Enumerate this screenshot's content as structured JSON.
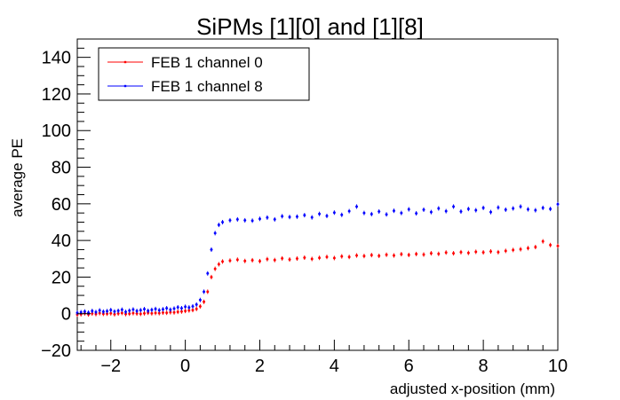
{
  "chart_data": {
    "type": "scatter",
    "title": "SiPMs [1][0] and [1][8]",
    "xlabel": "adjusted x-position (mm)",
    "ylabel": "average PE",
    "xlim": [
      -2.9,
      10
    ],
    "ylim": [
      -20,
      150
    ],
    "xticks": [
      "−2",
      "0",
      "2",
      "4",
      "6",
      "8",
      "10"
    ],
    "xtick_values": [
      -2,
      0,
      2,
      4,
      6,
      8,
      10
    ],
    "yticks": [
      "−20",
      "0",
      "20",
      "40",
      "60",
      "80",
      "100",
      "120",
      "140"
    ],
    "ytick_values": [
      -20,
      0,
      20,
      40,
      60,
      80,
      100,
      120,
      140
    ],
    "grid": false,
    "legend_position": "top-left",
    "series": [
      {
        "name": "FEB 1 channel 0",
        "color": "#ff0000",
        "x": [
          -2.9,
          -2.8,
          -2.7,
          -2.6,
          -2.5,
          -2.4,
          -2.3,
          -2.2,
          -2.1,
          -2.0,
          -1.9,
          -1.8,
          -1.7,
          -1.6,
          -1.5,
          -1.4,
          -1.3,
          -1.2,
          -1.1,
          -1.0,
          -0.9,
          -0.8,
          -0.7,
          -0.6,
          -0.5,
          -0.4,
          -0.3,
          -0.2,
          -0.1,
          0.0,
          0.1,
          0.2,
          0.3,
          0.4,
          0.5,
          0.6,
          0.7,
          0.8,
          0.9,
          1.0,
          1.2,
          1.4,
          1.6,
          1.8,
          2.0,
          2.2,
          2.4,
          2.6,
          2.8,
          3.0,
          3.2,
          3.4,
          3.6,
          3.8,
          4.0,
          4.2,
          4.4,
          4.6,
          4.8,
          5.0,
          5.2,
          5.4,
          5.6,
          5.8,
          6.0,
          6.2,
          6.4,
          6.6,
          6.8,
          7.0,
          7.2,
          7.4,
          7.6,
          7.8,
          8.0,
          8.2,
          8.4,
          8.6,
          8.8,
          9.0,
          9.2,
          9.4,
          9.6,
          9.8,
          10.0
        ],
        "y": [
          -0.5,
          -0.3,
          0.2,
          -0.4,
          0.1,
          -0.2,
          0.3,
          -0.1,
          0.0,
          0.2,
          -0.3,
          0.1,
          0.4,
          -0.2,
          0.0,
          0.3,
          0.1,
          -0.1,
          0.2,
          0.5,
          0.2,
          0.4,
          0.3,
          0.6,
          0.5,
          0.8,
          0.7,
          1.0,
          1.2,
          1.5,
          1.8,
          2.0,
          2.6,
          4.0,
          6.5,
          12.0,
          20.0,
          24.5,
          27.0,
          28.5,
          29.0,
          29.5,
          28.8,
          29.2,
          28.7,
          29.8,
          29.3,
          30.2,
          29.6,
          30.1,
          30.6,
          29.9,
          30.5,
          31.0,
          30.4,
          31.3,
          31.0,
          31.8,
          31.5,
          32.0,
          31.6,
          32.2,
          31.8,
          32.5,
          32.1,
          32.6,
          32.3,
          33.0,
          32.7,
          33.4,
          33.0,
          33.6,
          33.2,
          33.8,
          33.5,
          34.0,
          33.6,
          34.3,
          34.8,
          35.2,
          35.8,
          36.4,
          39.5,
          37.5,
          37.0
        ]
      },
      {
        "name": "FEB 1 channel 8",
        "color": "#0000ff",
        "x": [
          -2.9,
          -2.8,
          -2.7,
          -2.6,
          -2.5,
          -2.4,
          -2.3,
          -2.2,
          -2.1,
          -2.0,
          -1.9,
          -1.8,
          -1.7,
          -1.6,
          -1.5,
          -1.4,
          -1.3,
          -1.2,
          -1.1,
          -1.0,
          -0.9,
          -0.8,
          -0.7,
          -0.6,
          -0.5,
          -0.4,
          -0.3,
          -0.2,
          -0.1,
          0.0,
          0.1,
          0.2,
          0.3,
          0.4,
          0.5,
          0.6,
          0.7,
          0.8,
          0.9,
          1.0,
          1.2,
          1.4,
          1.6,
          1.8,
          2.0,
          2.2,
          2.4,
          2.6,
          2.8,
          3.0,
          3.2,
          3.4,
          3.6,
          3.8,
          4.0,
          4.2,
          4.4,
          4.6,
          4.8,
          5.0,
          5.2,
          5.4,
          5.6,
          5.8,
          6.0,
          6.2,
          6.4,
          6.6,
          6.8,
          7.0,
          7.2,
          7.4,
          7.6,
          7.8,
          8.0,
          8.2,
          8.4,
          8.6,
          8.8,
          9.0,
          9.2,
          9.4,
          9.6,
          9.8,
          10.0
        ],
        "y": [
          0.5,
          0.8,
          1.2,
          0.6,
          1.5,
          0.9,
          1.8,
          1.1,
          1.4,
          2.0,
          1.2,
          1.6,
          2.2,
          1.0,
          1.7,
          2.3,
          1.5,
          1.9,
          2.5,
          1.6,
          2.1,
          2.6,
          1.9,
          2.4,
          3.0,
          2.2,
          2.8,
          3.5,
          3.0,
          3.8,
          3.4,
          4.0,
          5.0,
          7.5,
          12.0,
          22.0,
          35.0,
          44.0,
          48.5,
          50.0,
          51.0,
          51.5,
          51.0,
          50.8,
          51.8,
          52.5,
          51.5,
          53.2,
          52.8,
          53.0,
          53.8,
          52.6,
          54.5,
          53.4,
          55.2,
          54.0,
          56.0,
          58.5,
          55.0,
          54.4,
          55.8,
          54.2,
          56.2,
          55.0,
          57.0,
          54.8,
          56.8,
          55.5,
          57.5,
          56.0,
          58.5,
          55.8,
          57.2,
          56.5,
          57.8,
          55.5,
          58.0,
          56.8,
          57.5,
          58.5,
          57.0,
          56.5,
          57.8,
          57.2,
          59.8
        ]
      }
    ]
  }
}
